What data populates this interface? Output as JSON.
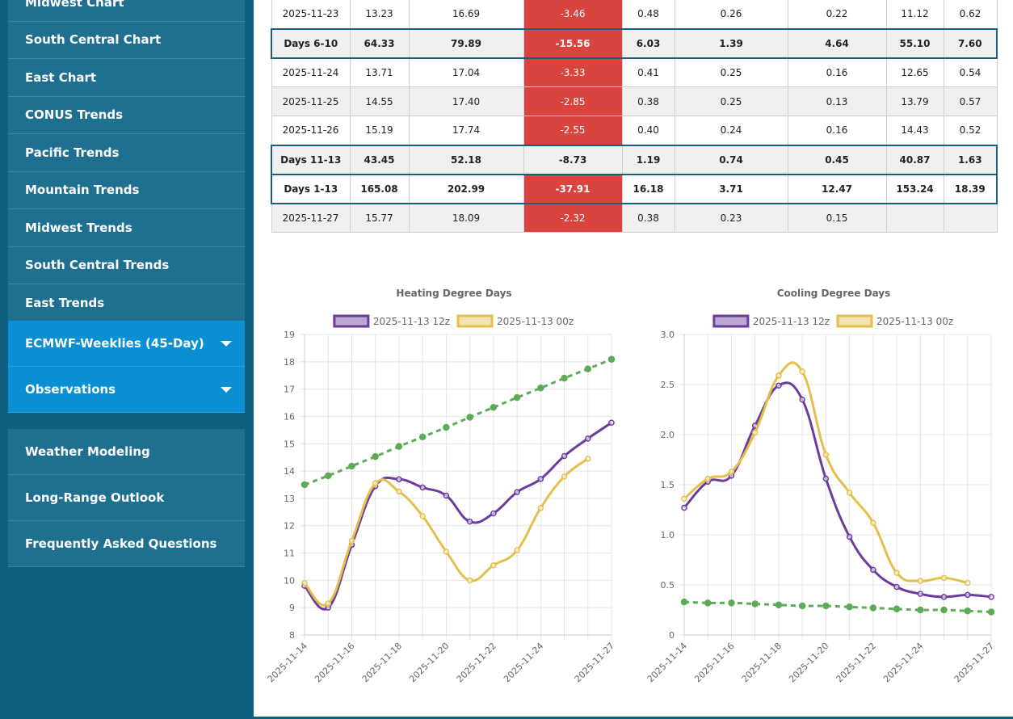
{
  "sidebar": {
    "menu": [
      "Midwest Chart",
      "South Central Chart",
      "East Chart",
      "CONUS Trends",
      "Pacific Trends",
      "Mountain Trends",
      "Midwest Trends",
      "South Central Trends",
      "East Trends"
    ],
    "expandable": [
      "ECMWF-Weeklies (45-Day)",
      "Observations"
    ],
    "links": [
      "Weather Modeling",
      "Long-Range Outlook",
      "Frequently Asked Questions"
    ]
  },
  "table": {
    "rows": [
      {
        "cells": [
          "2025-11-23",
          "13.23",
          "16.69",
          "-3.46",
          "0.48",
          "0.26",
          "0.22",
          "11.12",
          "0.62"
        ],
        "summary": false,
        "alert": true
      },
      {
        "cells": [
          "Days 6-10",
          "64.33",
          "79.89",
          "-15.56",
          "6.03",
          "1.39",
          "4.64",
          "55.10",
          "7.60"
        ],
        "summary": true,
        "alert": true
      },
      {
        "cells": [
          "2025-11-24",
          "13.71",
          "17.04",
          "-3.33",
          "0.41",
          "0.25",
          "0.16",
          "12.65",
          "0.54"
        ],
        "summary": false,
        "alert": true
      },
      {
        "cells": [
          "2025-11-25",
          "14.55",
          "17.40",
          "-2.85",
          "0.38",
          "0.25",
          "0.13",
          "13.79",
          "0.57"
        ],
        "summary": false,
        "alert": true
      },
      {
        "cells": [
          "2025-11-26",
          "15.19",
          "17.74",
          "-2.55",
          "0.40",
          "0.24",
          "0.16",
          "14.43",
          "0.52"
        ],
        "summary": false,
        "alert": true
      },
      {
        "cells": [
          "Days 11-13",
          "43.45",
          "52.18",
          "-8.73",
          "1.19",
          "0.74",
          "0.45",
          "40.87",
          "1.63"
        ],
        "summary": true,
        "alert": false
      },
      {
        "cells": [
          "Days 1-13",
          "165.08",
          "202.99",
          "-37.91",
          "16.18",
          "3.71",
          "12.47",
          "153.24",
          "18.39"
        ],
        "summary": true,
        "alert": true
      },
      {
        "cells": [
          "2025-11-27",
          "15.77",
          "18.09",
          "-2.32",
          "0.38",
          "0.23",
          "0.15",
          null,
          null
        ],
        "summary": false,
        "alert": true
      }
    ]
  },
  "chart_data": [
    {
      "type": "line",
      "title": "Heating Degree Days",
      "categories": [
        "2025-11-14",
        null,
        "2025-11-16",
        null,
        "2025-11-18",
        null,
        "2025-11-20",
        null,
        "2025-11-22",
        null,
        "2025-11-24",
        null,
        null,
        "2025-11-27"
      ],
      "ylim": [
        8,
        19
      ],
      "yticks": [
        8,
        9,
        10,
        11,
        12,
        13,
        14,
        15,
        16,
        17,
        18,
        19
      ],
      "grid": true,
      "series": [
        {
          "name": "2025-11-13 12z",
          "color": "#6b3c9e",
          "values": [
            9.8,
            9.0,
            11.3,
            13.45,
            13.7,
            13.4,
            13.1,
            12.15,
            12.45,
            13.23,
            13.71,
            14.55,
            15.19,
            15.77
          ]
        },
        {
          "name": "2025-11-13 00z",
          "color": "#e5bf4c",
          "values": [
            9.9,
            9.15,
            11.45,
            13.55,
            13.25,
            12.35,
            11.05,
            10.0,
            10.55,
            11.1,
            12.65,
            13.8,
            14.45,
            null
          ]
        },
        {
          "color": "#5dab58",
          "dashed": true,
          "values": [
            13.5,
            13.83,
            14.18,
            14.53,
            14.9,
            15.25,
            15.6,
            15.97,
            16.33,
            16.69,
            17.04,
            17.4,
            17.74,
            18.09
          ]
        }
      ]
    },
    {
      "type": "line",
      "title": "Cooling Degree Days",
      "categories": [
        "2025-11-14",
        null,
        "2025-11-16",
        null,
        "2025-11-18",
        null,
        "2025-11-20",
        null,
        "2025-11-22",
        null,
        "2025-11-24",
        null,
        null,
        "2025-11-27"
      ],
      "ylim": [
        0,
        3
      ],
      "yticks": [
        0,
        0.5,
        {
          "value": 1,
          "label": "1.0"
        },
        1.5,
        {
          "value": 2,
          "label": "2.0"
        },
        2.5,
        {
          "value": 3,
          "label": "3.0"
        }
      ],
      "grid": true,
      "series": [
        {
          "name": "2025-11-13 12z",
          "color": "#6b3c9e",
          "values": [
            1.27,
            1.53,
            1.59,
            2.09,
            2.49,
            2.35,
            1.56,
            0.98,
            0.65,
            0.48,
            0.41,
            0.38,
            0.4,
            0.38
          ]
        },
        {
          "name": "2025-11-13 00z",
          "color": "#e5bf4c",
          "values": [
            1.36,
            1.56,
            1.63,
            2.02,
            2.59,
            2.63,
            1.8,
            1.42,
            1.12,
            0.62,
            0.54,
            0.57,
            0.52,
            null
          ]
        },
        {
          "color": "#5dab58",
          "dashed": true,
          "values": [
            0.33,
            0.32,
            0.32,
            0.31,
            0.3,
            0.29,
            0.29,
            0.28,
            0.27,
            0.26,
            0.25,
            0.25,
            0.24,
            0.23
          ]
        }
      ]
    }
  ]
}
